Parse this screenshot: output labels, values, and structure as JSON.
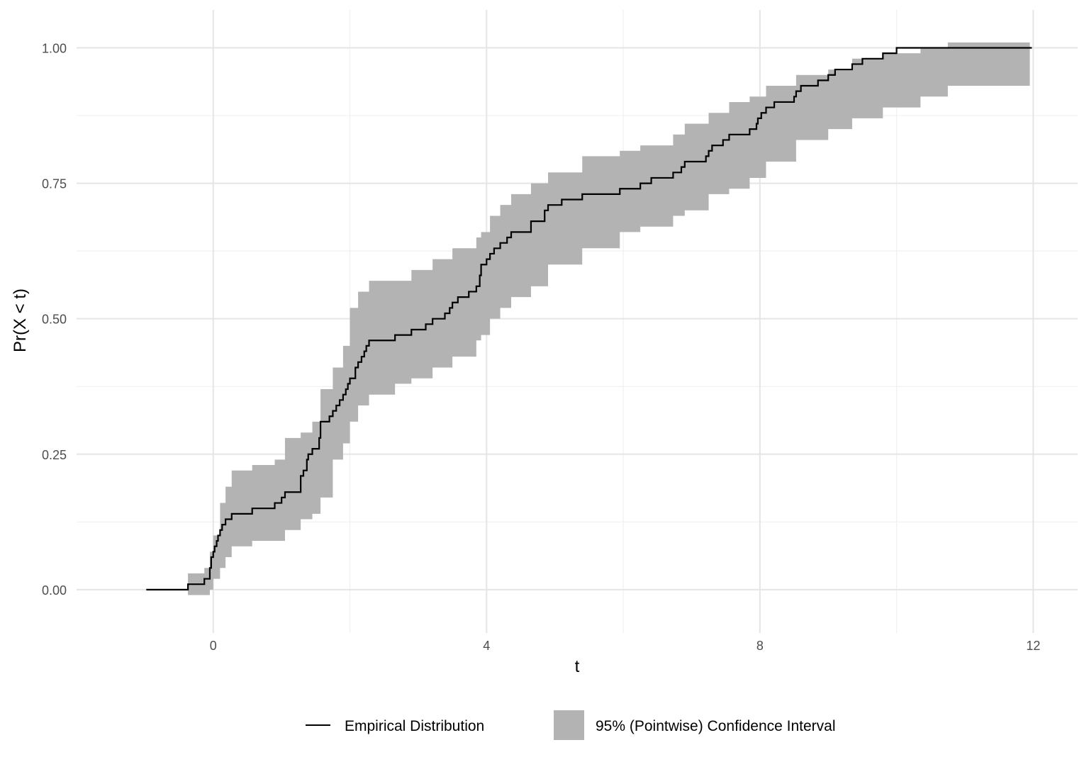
{
  "colors": {
    "background": "#ffffff",
    "grid_major": "#e5e5e5",
    "grid_minor": "#f0f0f0",
    "band": "#b3b3b3",
    "line": "#000000"
  },
  "chart_data": {
    "type": "line",
    "title": "",
    "xlabel": "t",
    "ylabel": "Pr(X < t)",
    "xlim": [
      -2.0,
      12.65
    ],
    "ylim": [
      -0.08,
      1.07
    ],
    "x_ticks": [
      0,
      4,
      8,
      12
    ],
    "y_ticks": [
      0,
      0.25,
      0.5,
      0.75,
      1.0
    ],
    "x_tick_labels": [
      "0",
      "4",
      "8",
      "12"
    ],
    "y_tick_labels": [
      "0.00",
      "0.25",
      "0.50",
      "0.75",
      "1.00"
    ],
    "grid": true,
    "legend_position": "bottom",
    "series": [
      {
        "name": "Empirical Distribution",
        "kind": "step",
        "x": [
          -0.98,
          -0.37,
          -0.13,
          -0.05,
          -0.03,
          0.0,
          0.02,
          0.05,
          0.07,
          0.1,
          0.13,
          0.18,
          0.27,
          0.57,
          0.9,
          1.0,
          1.05,
          1.28,
          1.32,
          1.37,
          1.39,
          1.45,
          1.55,
          1.57,
          1.7,
          1.75,
          1.8,
          1.85,
          1.9,
          1.94,
          1.97,
          2.0,
          2.08,
          2.12,
          2.17,
          2.21,
          2.24,
          2.28,
          2.66,
          2.9,
          3.11,
          3.21,
          3.39,
          3.46,
          3.5,
          3.58,
          3.74,
          3.85,
          3.9,
          3.92,
          4.0,
          4.05,
          4.11,
          4.2,
          4.3,
          4.36,
          4.65,
          4.85,
          4.9,
          5.1,
          5.4,
          5.65,
          5.95,
          6.25,
          6.41,
          6.73,
          6.85,
          6.9,
          7.21,
          7.25,
          7.3,
          7.46,
          7.55,
          7.85,
          7.95,
          7.97,
          8.02,
          8.09,
          8.21,
          8.5,
          8.53,
          8.6,
          8.85,
          9.0,
          9.1,
          9.35,
          9.5,
          9.8,
          10.0,
          10.35,
          10.45,
          10.65,
          10.75,
          10.95,
          11.8,
          11.95
        ],
        "y": [
          0.0,
          0.01,
          0.02,
          0.04,
          0.06,
          0.07,
          0.08,
          0.09,
          0.1,
          0.11,
          0.12,
          0.13,
          0.14,
          0.15,
          0.16,
          0.17,
          0.18,
          0.21,
          0.22,
          0.24,
          0.25,
          0.26,
          0.28,
          0.31,
          0.32,
          0.33,
          0.34,
          0.35,
          0.36,
          0.37,
          0.38,
          0.39,
          0.41,
          0.42,
          0.43,
          0.44,
          0.45,
          0.46,
          0.47,
          0.48,
          0.49,
          0.5,
          0.51,
          0.52,
          0.53,
          0.54,
          0.55,
          0.56,
          0.58,
          0.6,
          0.61,
          0.62,
          0.63,
          0.64,
          0.65,
          0.66,
          0.68,
          0.7,
          0.71,
          0.72,
          0.73,
          0.73,
          0.74,
          0.75,
          0.76,
          0.77,
          0.78,
          0.79,
          0.8,
          0.81,
          0.82,
          0.83,
          0.84,
          0.85,
          0.86,
          0.87,
          0.88,
          0.89,
          0.9,
          0.91,
          0.92,
          0.93,
          0.94,
          0.95,
          0.96,
          0.97,
          0.98,
          0.99,
          1.0,
          1.0,
          1.0,
          1.0,
          1.0,
          1.0,
          1.0,
          1.0
        ],
        "x_end": 11.98
      },
      {
        "name": "95% (Pointwise) Confidence Interval",
        "kind": "ribbon",
        "x": [
          -0.37,
          -0.13,
          -0.05,
          0.0,
          0.1,
          0.18,
          0.27,
          0.57,
          0.9,
          1.05,
          1.28,
          1.45,
          1.57,
          1.75,
          1.9,
          2.0,
          2.12,
          2.28,
          2.66,
          2.9,
          3.21,
          3.5,
          3.85,
          3.92,
          4.05,
          4.2,
          4.36,
          4.65,
          4.9,
          5.4,
          5.95,
          6.25,
          6.73,
          6.9,
          7.25,
          7.55,
          7.85,
          8.09,
          8.53,
          9.0,
          9.35,
          9.8,
          10.35,
          10.75,
          11.95
        ],
        "lower": [
          -0.01,
          -0.01,
          0.0,
          0.02,
          0.04,
          0.06,
          0.08,
          0.09,
          0.09,
          0.11,
          0.13,
          0.14,
          0.17,
          0.24,
          0.27,
          0.31,
          0.34,
          0.36,
          0.38,
          0.39,
          0.41,
          0.43,
          0.46,
          0.47,
          0.5,
          0.52,
          0.54,
          0.56,
          0.6,
          0.63,
          0.66,
          0.67,
          0.69,
          0.7,
          0.73,
          0.74,
          0.76,
          0.79,
          0.83,
          0.85,
          0.87,
          0.89,
          0.91,
          0.93,
          0.97
        ],
        "upper": [
          0.03,
          0.04,
          0.07,
          0.1,
          0.16,
          0.19,
          0.22,
          0.23,
          0.24,
          0.28,
          0.29,
          0.31,
          0.37,
          0.41,
          0.45,
          0.52,
          0.55,
          0.57,
          0.57,
          0.59,
          0.61,
          0.63,
          0.65,
          0.66,
          0.69,
          0.71,
          0.73,
          0.75,
          0.77,
          0.8,
          0.81,
          0.82,
          0.84,
          0.86,
          0.88,
          0.9,
          0.91,
          0.93,
          0.95,
          0.96,
          0.98,
          0.99,
          1.0,
          1.01,
          1.01
        ],
        "x_end": 11.95
      }
    ]
  }
}
